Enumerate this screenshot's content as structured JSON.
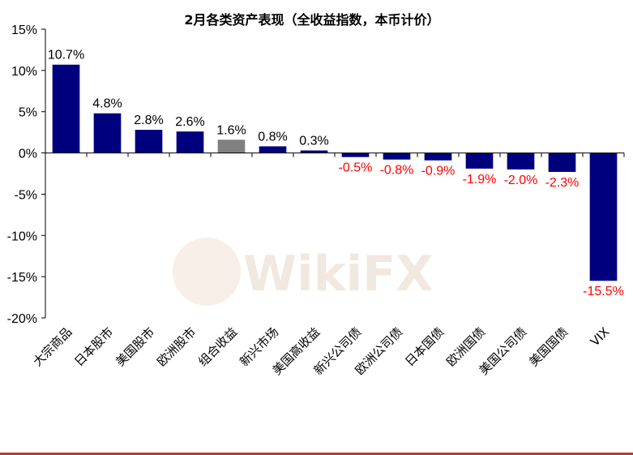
{
  "chart_data": {
    "type": "bar",
    "title": "2月各类资产表现（全收益指数，本币计价）",
    "categories": [
      "大宗商品",
      "日本股市",
      "美国股市",
      "欧洲股市",
      "组合收益",
      "新兴市场",
      "美国高收益",
      "新兴公司债",
      "欧洲公司债",
      "日本国债",
      "欧洲国债",
      "美国公司债",
      "美国国债",
      "VIX"
    ],
    "values": [
      10.7,
      4.8,
      2.8,
      2.6,
      1.6,
      0.8,
      0.3,
      -0.5,
      -0.8,
      -0.9,
      -1.9,
      -2.0,
      -2.3,
      -15.5
    ],
    "value_labels": [
      "10.7%",
      "4.8%",
      "2.8%",
      "2.6%",
      "1.6%",
      "0.8%",
      "0.3%",
      "-0.5%",
      "-0.8%",
      "-0.9%",
      "-1.9%",
      "-2.0%",
      "-2.3%",
      "-15.5%"
    ],
    "yticks": [
      15,
      10,
      5,
      0,
      -5,
      -10,
      -15,
      -20
    ],
    "ytick_labels": [
      "15%",
      "10%",
      "5%",
      "0%",
      "-5%",
      "-10%",
      "-15%",
      "-20%"
    ],
    "ylim": [
      -20,
      15
    ],
    "highlight_index": 4,
    "grid": false,
    "xlabel": "",
    "ylabel": ""
  },
  "colors": {
    "bar": "#00007f",
    "highlight_bar": "#808080",
    "positive_label": "#000000",
    "negative_label": "#ff0000",
    "bottom_rule": "#c0392b"
  },
  "watermark": {
    "text": "WikiFX"
  }
}
